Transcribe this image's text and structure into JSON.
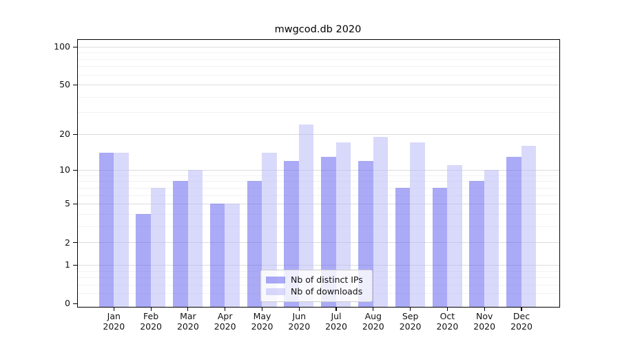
{
  "title": "mwgcod.db 2020",
  "chart_data": {
    "type": "bar",
    "title": "mwgcod.db 2020",
    "categories": [
      "Jan",
      "Feb",
      "Mar",
      "Apr",
      "May",
      "Jun",
      "Jul",
      "Aug",
      "Sep",
      "Oct",
      "Nov",
      "Dec"
    ],
    "x_year_label": "2020",
    "series": [
      {
        "name": "Nb of distinct IPs",
        "color": "rgba(85,85,238,0.5)",
        "values": [
          14,
          4,
          8,
          5,
          8,
          12,
          13,
          12,
          7,
          7,
          8,
          13
        ]
      },
      {
        "name": "Nb of downloads",
        "color": "rgba(179,179,247,0.5)",
        "values": [
          14,
          7,
          10,
          5,
          14,
          24,
          17,
          19,
          17,
          11,
          10,
          16
        ]
      }
    ],
    "y_scale": "log1p",
    "ylim": [
      0,
      114
    ],
    "y_tick_values": [
      100,
      50,
      20,
      10,
      5,
      2,
      1,
      0
    ],
    "y_tick_labels": [
      "100",
      "50",
      "20",
      "10",
      "5",
      "2",
      "1",
      "0"
    ],
    "y_minor_values": [
      0.2,
      0.4,
      0.6,
      0.8,
      3,
      4,
      6,
      7,
      8,
      9,
      30,
      40,
      60,
      70,
      80,
      90
    ],
    "grid": true,
    "legend": {
      "position": "lower center",
      "labels": [
        "Nb of distinct IPs",
        "Nb of downloads"
      ]
    }
  },
  "colors": {
    "grid_major": "#dcdcdc",
    "grid_minor": "#f2f2f2",
    "axis": "#000000",
    "legend_border": "#cccccc",
    "bar_ips": "rgba(85,85,238,0.5)",
    "bar_downloads": "rgba(179,179,247,0.5)"
  }
}
